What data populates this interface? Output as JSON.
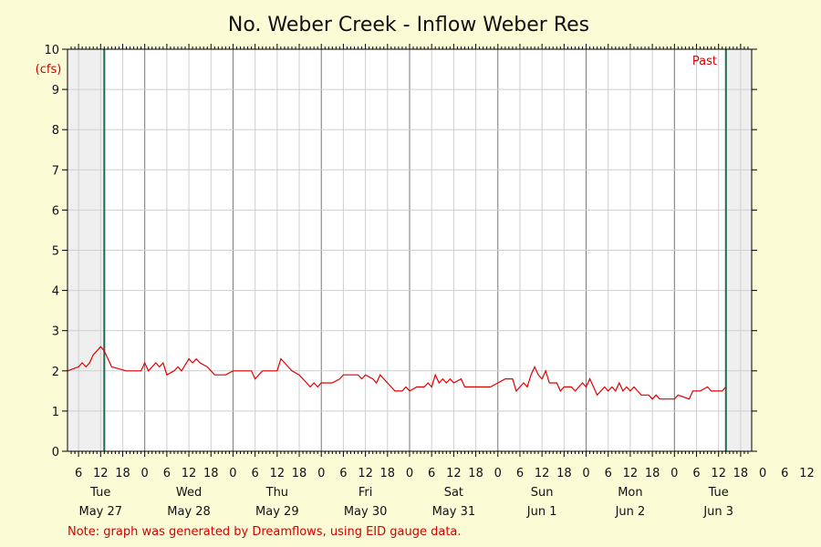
{
  "chart_data": {
    "type": "line",
    "title": "No. Weber Creek - Inflow Weber Res",
    "ylabel": "(cfs)",
    "ylim": [
      0,
      10
    ],
    "y_ticks": [
      0,
      1,
      2,
      3,
      4,
      5,
      6,
      7,
      8,
      9,
      10
    ],
    "x_hour_ticks": [
      "6",
      "12",
      "18",
      "0",
      "6",
      "12",
      "18",
      "0",
      "6",
      "12",
      "18",
      "0",
      "6",
      "12",
      "18",
      "0",
      "6",
      "12",
      "18",
      "0",
      "6",
      "12",
      "18",
      "0",
      "6",
      "12",
      "18",
      "0",
      "6",
      "12",
      "18",
      "0",
      "6",
      "12",
      "18"
    ],
    "day_labels": [
      {
        "weekday": "Tue",
        "date": "May 27"
      },
      {
        "weekday": "Wed",
        "date": "May 28"
      },
      {
        "weekday": "Thu",
        "date": "May 29"
      },
      {
        "weekday": "Fri",
        "date": "May 30"
      },
      {
        "weekday": "Sat",
        "date": "May 31"
      },
      {
        "weekday": "Sun",
        "date": "Jun 1"
      },
      {
        "weekday": "Mon",
        "date": "Jun 2"
      },
      {
        "weekday": "Tue",
        "date": "Jun 3"
      }
    ],
    "marker_label": "Past",
    "grid": true,
    "series": [
      {
        "color": "#e00000",
        "x_start": "2025-05-27T03:00",
        "x_step_hours": 1,
        "x_end": "2025-06-03T14:00",
        "points": [
          [
            "2025-05-27T03:00",
            2.0
          ],
          [
            "2025-05-27T06:00",
            2.1
          ],
          [
            "2025-05-27T07:00",
            2.2
          ],
          [
            "2025-05-27T08:00",
            2.1
          ],
          [
            "2025-05-27T09:00",
            2.2
          ],
          [
            "2025-05-27T10:00",
            2.4
          ],
          [
            "2025-05-27T11:00",
            2.5
          ],
          [
            "2025-05-27T12:00",
            2.6
          ],
          [
            "2025-05-27T13:00",
            2.5
          ],
          [
            "2025-05-27T15:00",
            2.1
          ],
          [
            "2025-05-27T19:00",
            2.0
          ],
          [
            "2025-05-27T23:00",
            2.0
          ],
          [
            "2025-05-28T00:00",
            2.2
          ],
          [
            "2025-05-28T01:00",
            2.0
          ],
          [
            "2025-05-28T03:00",
            2.2
          ],
          [
            "2025-05-28T04:00",
            2.1
          ],
          [
            "2025-05-28T05:00",
            2.2
          ],
          [
            "2025-05-28T06:00",
            1.9
          ],
          [
            "2025-05-28T08:00",
            2.0
          ],
          [
            "2025-05-28T09:00",
            2.1
          ],
          [
            "2025-05-28T10:00",
            2.0
          ],
          [
            "2025-05-28T12:00",
            2.3
          ],
          [
            "2025-05-28T13:00",
            2.2
          ],
          [
            "2025-05-28T14:00",
            2.3
          ],
          [
            "2025-05-28T15:00",
            2.2
          ],
          [
            "2025-05-28T17:00",
            2.1
          ],
          [
            "2025-05-28T19:00",
            1.9
          ],
          [
            "2025-05-28T22:00",
            1.9
          ],
          [
            "2025-05-29T00:00",
            2.0
          ],
          [
            "2025-05-29T05:00",
            2.0
          ],
          [
            "2025-05-29T06:00",
            1.8
          ],
          [
            "2025-05-29T08:00",
            2.0
          ],
          [
            "2025-05-29T10:00",
            2.0
          ],
          [
            "2025-05-29T12:00",
            2.0
          ],
          [
            "2025-05-29T13:00",
            2.3
          ],
          [
            "2025-05-29T14:00",
            2.2
          ],
          [
            "2025-05-29T16:00",
            2.0
          ],
          [
            "2025-05-29T18:00",
            1.9
          ],
          [
            "2025-05-29T20:00",
            1.7
          ],
          [
            "2025-05-29T21:00",
            1.6
          ],
          [
            "2025-05-29T22:00",
            1.7
          ],
          [
            "2025-05-29T23:00",
            1.6
          ],
          [
            "2025-05-30T00:00",
            1.7
          ],
          [
            "2025-05-30T03:00",
            1.7
          ],
          [
            "2025-05-30T05:00",
            1.8
          ],
          [
            "2025-05-30T06:00",
            1.9
          ],
          [
            "2025-05-30T10:00",
            1.9
          ],
          [
            "2025-05-30T11:00",
            1.8
          ],
          [
            "2025-05-30T12:00",
            1.9
          ],
          [
            "2025-05-30T14:00",
            1.8
          ],
          [
            "2025-05-30T15:00",
            1.7
          ],
          [
            "2025-05-30T16:00",
            1.9
          ],
          [
            "2025-05-30T18:00",
            1.7
          ],
          [
            "2025-05-30T20:00",
            1.5
          ],
          [
            "2025-05-30T22:00",
            1.5
          ],
          [
            "2025-05-30T23:00",
            1.6
          ],
          [
            "2025-05-31T00:00",
            1.5
          ],
          [
            "2025-05-31T02:00",
            1.6
          ],
          [
            "2025-05-31T04:00",
            1.6
          ],
          [
            "2025-05-31T05:00",
            1.7
          ],
          [
            "2025-05-31T06:00",
            1.6
          ],
          [
            "2025-05-31T07:00",
            1.9
          ],
          [
            "2025-05-31T08:00",
            1.7
          ],
          [
            "2025-05-31T09:00",
            1.8
          ],
          [
            "2025-05-31T10:00",
            1.7
          ],
          [
            "2025-05-31T11:00",
            1.8
          ],
          [
            "2025-05-31T12:00",
            1.7
          ],
          [
            "2025-05-31T14:00",
            1.8
          ],
          [
            "2025-05-31T15:00",
            1.6
          ],
          [
            "2025-05-31T22:00",
            1.6
          ],
          [
            "2025-06-01T00:00",
            1.7
          ],
          [
            "2025-06-01T02:00",
            1.8
          ],
          [
            "2025-06-01T04:00",
            1.8
          ],
          [
            "2025-06-01T05:00",
            1.5
          ],
          [
            "2025-06-01T06:00",
            1.6
          ],
          [
            "2025-06-01T07:00",
            1.7
          ],
          [
            "2025-06-01T08:00",
            1.6
          ],
          [
            "2025-06-01T09:00",
            1.9
          ],
          [
            "2025-06-01T10:00",
            2.1
          ],
          [
            "2025-06-01T11:00",
            1.9
          ],
          [
            "2025-06-01T12:00",
            1.8
          ],
          [
            "2025-06-01T13:00",
            2.0
          ],
          [
            "2025-06-01T14:00",
            1.7
          ],
          [
            "2025-06-01T16:00",
            1.7
          ],
          [
            "2025-06-01T17:00",
            1.5
          ],
          [
            "2025-06-01T18:00",
            1.6
          ],
          [
            "2025-06-01T20:00",
            1.6
          ],
          [
            "2025-06-01T21:00",
            1.5
          ],
          [
            "2025-06-01T22:00",
            1.6
          ],
          [
            "2025-06-01T23:00",
            1.7
          ],
          [
            "2025-06-02T00:00",
            1.6
          ],
          [
            "2025-06-02T01:00",
            1.8
          ],
          [
            "2025-06-02T02:00",
            1.6
          ],
          [
            "2025-06-02T03:00",
            1.4
          ],
          [
            "2025-06-02T04:00",
            1.5
          ],
          [
            "2025-06-02T05:00",
            1.6
          ],
          [
            "2025-06-02T06:00",
            1.5
          ],
          [
            "2025-06-02T07:00",
            1.6
          ],
          [
            "2025-06-02T08:00",
            1.5
          ],
          [
            "2025-06-02T09:00",
            1.7
          ],
          [
            "2025-06-02T10:00",
            1.5
          ],
          [
            "2025-06-02T11:00",
            1.6
          ],
          [
            "2025-06-02T12:00",
            1.5
          ],
          [
            "2025-06-02T13:00",
            1.6
          ],
          [
            "2025-06-02T14:00",
            1.5
          ],
          [
            "2025-06-02T15:00",
            1.4
          ],
          [
            "2025-06-02T17:00",
            1.4
          ],
          [
            "2025-06-02T18:00",
            1.3
          ],
          [
            "2025-06-02T19:00",
            1.4
          ],
          [
            "2025-06-02T20:00",
            1.3
          ],
          [
            "2025-06-03T00:00",
            1.3
          ],
          [
            "2025-06-03T01:00",
            1.4
          ],
          [
            "2025-06-03T04:00",
            1.3
          ],
          [
            "2025-06-03T05:00",
            1.5
          ],
          [
            "2025-06-03T07:00",
            1.5
          ],
          [
            "2025-06-03T09:00",
            1.6
          ],
          [
            "2025-06-03T10:00",
            1.5
          ],
          [
            "2025-06-03T13:00",
            1.5
          ],
          [
            "2025-06-03T14:00",
            1.6
          ]
        ]
      }
    ]
  },
  "note": "Note: graph was generated by Dreamflows, using EID gauge data."
}
